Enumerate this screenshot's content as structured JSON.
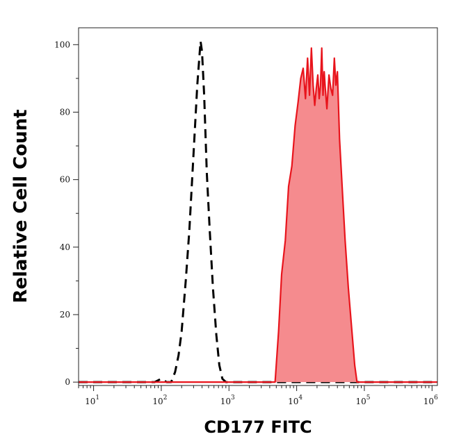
{
  "chart_data": {
    "type": "area",
    "title": "",
    "xlabel": "CD177 FITC",
    "ylabel": "Relative Cell Count",
    "x_scale": "log",
    "xlim": [
      6,
      1200000
    ],
    "ylim": [
      -1,
      105
    ],
    "grid": false,
    "legend": "none",
    "x_ticks": [
      {
        "base": "10",
        "exp": "1",
        "value": 10
      },
      {
        "base": "10",
        "exp": "2",
        "value": 100
      },
      {
        "base": "10",
        "exp": "3",
        "value": 1000
      },
      {
        "base": "10",
        "exp": "4",
        "value": 10000
      },
      {
        "base": "10",
        "exp": "5",
        "value": 100000
      },
      {
        "base": "10",
        "exp": "6",
        "value": 1000000
      }
    ],
    "y_ticks": [
      {
        "label": "0",
        "value": 0
      },
      {
        "label": "20",
        "value": 20
      },
      {
        "label": "40",
        "value": 40
      },
      {
        "label": "60",
        "value": 60
      },
      {
        "label": "80",
        "value": 80
      },
      {
        "label": "100",
        "value": 100
      }
    ],
    "series": [
      {
        "style": "dashed",
        "color": "#000000",
        "filled": false,
        "x": [
          6,
          80,
          100,
          120,
          140,
          160,
          180,
          200,
          230,
          260,
          300,
          340,
          380,
          400,
          430,
          470,
          520,
          580,
          650,
          720,
          800,
          900,
          1200000
        ],
        "y": [
          0,
          0,
          1,
          0,
          0,
          3,
          8,
          15,
          30,
          45,
          68,
          88,
          101,
          98,
          85,
          62,
          45,
          28,
          14,
          5,
          1,
          0,
          0
        ]
      },
      {
        "style": "solid",
        "color": "#e8141c",
        "fill": "#f58b8e",
        "filled": true,
        "x": [
          6,
          4800,
          5400,
          6000,
          6800,
          7600,
          8500,
          9500,
          10500,
          11500,
          12500,
          13500,
          14500,
          15500,
          16500,
          17500,
          18500,
          19500,
          20500,
          21500,
          22500,
          23500,
          24500,
          25500,
          26500,
          28000,
          30000,
          32000,
          34000,
          36000,
          38000,
          40000,
          43000,
          47000,
          52000,
          58000,
          65000,
          72000,
          78000,
          1200000
        ],
        "y": [
          0,
          0,
          15,
          32,
          42,
          58,
          64,
          76,
          83,
          90,
          93,
          84,
          96,
          85,
          99,
          88,
          82,
          87,
          91,
          84,
          88,
          99,
          85,
          92,
          87,
          81,
          91,
          87,
          85,
          96,
          88,
          92,
          72,
          58,
          42,
          28,
          16,
          5,
          0,
          0
        ]
      }
    ]
  }
}
